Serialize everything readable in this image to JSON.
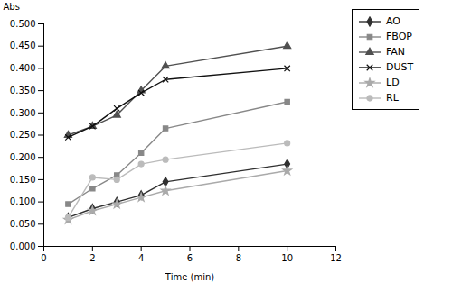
{
  "chart_data": {
    "type": "line",
    "xlabel": "Time (min)",
    "ylabel": "Abs",
    "x": [
      1,
      2,
      3,
      4,
      5,
      10
    ],
    "series": [
      {
        "name": "AO",
        "color": "#303030",
        "marker": "diamond",
        "values": [
          0.065,
          0.085,
          0.1,
          0.115,
          0.145,
          0.185
        ]
      },
      {
        "name": "FBOP",
        "color": "#888888",
        "marker": "square",
        "values": [
          0.095,
          0.13,
          0.16,
          0.21,
          0.265,
          0.325
        ]
      },
      {
        "name": "FAN",
        "color": "#505050",
        "marker": "triangle",
        "values": [
          0.25,
          0.27,
          0.295,
          0.35,
          0.405,
          0.45
        ]
      },
      {
        "name": "DUST",
        "color": "#101010",
        "marker": "times",
        "values": [
          0.245,
          0.27,
          0.31,
          0.345,
          0.375,
          0.4
        ]
      },
      {
        "name": "LD",
        "color": "#aaaaaa",
        "marker": "star",
        "values": [
          0.06,
          0.08,
          0.095,
          0.11,
          0.125,
          0.17
        ]
      },
      {
        "name": "RL",
        "color": "#bbbbbb",
        "marker": "circle",
        "values": [
          0.065,
          0.155,
          0.15,
          0.185,
          0.195,
          0.232
        ]
      }
    ],
    "xlim": [
      0,
      12
    ],
    "xticks": [
      0,
      2,
      4,
      6,
      8,
      10,
      12
    ],
    "ylim": [
      0,
      0.5
    ],
    "yticks": [
      {
        "value": 0,
        "label": "0.000"
      },
      {
        "value": 0.05,
        "label": "0.050"
      },
      {
        "value": 0.1,
        "label": "0.100"
      },
      {
        "value": 0.15,
        "label": "0.150"
      },
      {
        "value": 0.2,
        "label": "0.200"
      },
      {
        "value": 0.25,
        "label": "0.250"
      },
      {
        "value": 0.3,
        "label": "0.300"
      },
      {
        "value": 0.35,
        "label": "0.350"
      },
      {
        "value": 0.4,
        "label": "0.400"
      },
      {
        "value": 0.45,
        "label": "0.450"
      },
      {
        "value": 0.5,
        "label": "0.500"
      }
    ],
    "grid": false,
    "legend": "right"
  }
}
